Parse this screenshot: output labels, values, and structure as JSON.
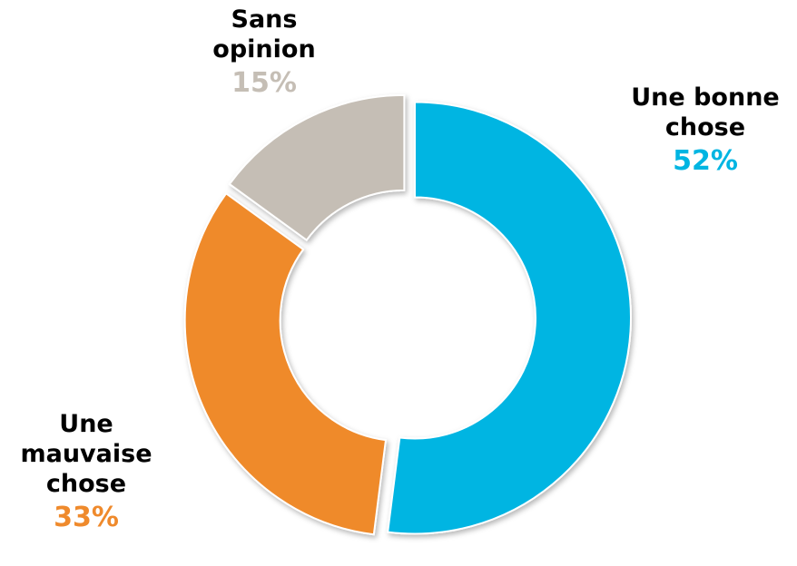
{
  "chart_data": {
    "type": "pie",
    "variant": "donut",
    "title": "",
    "slices": [
      {
        "label": "Une bonne chose",
        "value": 52,
        "display": "52%",
        "color": "#00B5E2"
      },
      {
        "label": "Une mauvaise chose",
        "value": 33,
        "display": "33%",
        "color": "#EF8A2C"
      },
      {
        "label": "Sans opinion",
        "value": 15,
        "display": "15%",
        "color": "#C5BEB5"
      }
    ],
    "start": "top (12 o'clock), clockwise",
    "exploded": true
  },
  "labels": {
    "good": {
      "line1": "Une bonne",
      "line2": "chose",
      "pct": "52%"
    },
    "bad": {
      "line1": "Une",
      "line2": "mauvaise",
      "line3": "chose",
      "pct": "33%"
    },
    "none": {
      "line1": "Sans",
      "line2": "opinion",
      "pct": "15%"
    }
  }
}
